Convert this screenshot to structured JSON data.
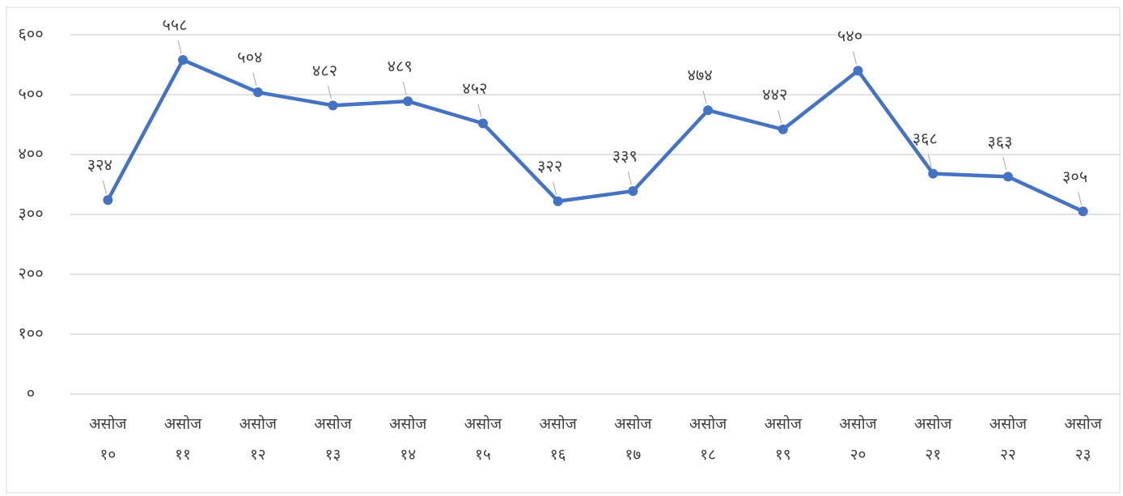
{
  "chart_data": {
    "type": "line",
    "categories": [
      "असोज १०",
      "असोज ११",
      "असोज १२",
      "असोज १३",
      "असोज १४",
      "असोज १५",
      "असोज १६",
      "असोज १७",
      "असोज १८",
      "असोज १९",
      "असोज २०",
      "असोज २१",
      "असोज २२",
      "असोज २३"
    ],
    "values": [
      324,
      558,
      504,
      482,
      489,
      452,
      322,
      339,
      474,
      442,
      540,
      368,
      363,
      305
    ],
    "value_labels": [
      "३२४",
      "५५८",
      "५०४",
      "४८२",
      "४८९",
      "४५२",
      "३२२",
      "३३९",
      "४७४",
      "४४२",
      "५४०",
      "३६८",
      "३६३",
      "३०५"
    ],
    "color": "#4472c4",
    "ylim": [
      0,
      600
    ],
    "yticks": [
      {
        "value": 0,
        "label": "०"
      },
      {
        "value": 100,
        "label": "१००"
      },
      {
        "value": 200,
        "label": "२००"
      },
      {
        "value": 300,
        "label": "३००"
      },
      {
        "value": 400,
        "label": "४००"
      },
      {
        "value": 500,
        "label": "५००"
      },
      {
        "value": 600,
        "label": "६००"
      }
    ],
    "grid": true
  }
}
